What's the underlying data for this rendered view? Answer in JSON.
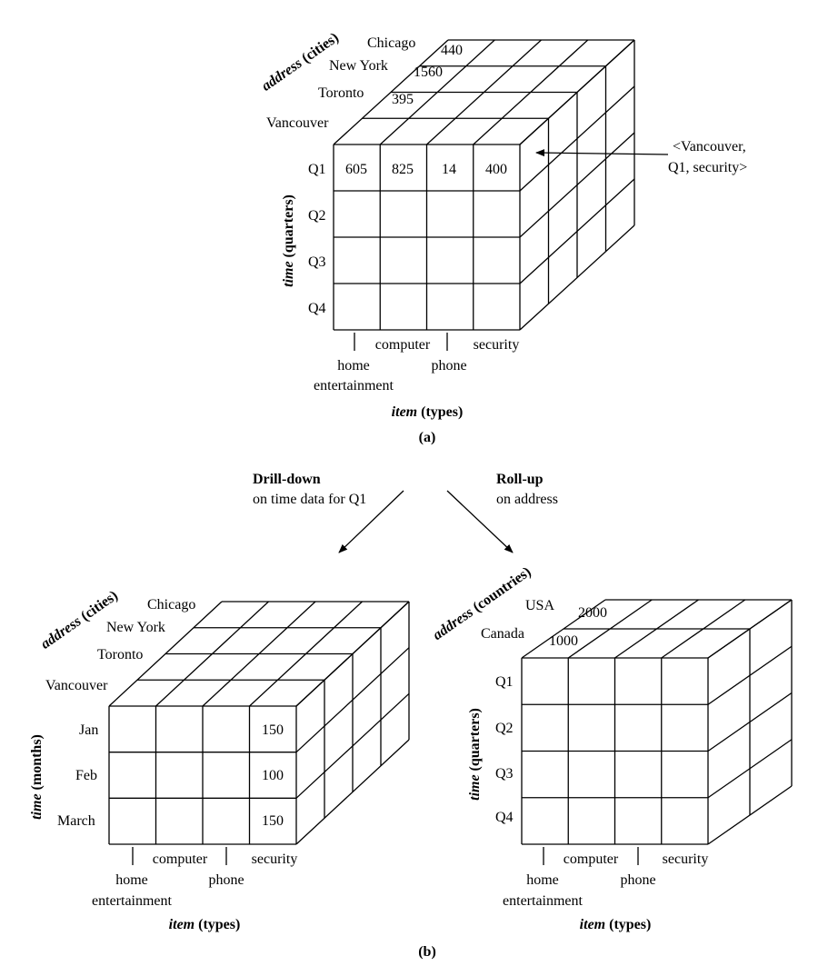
{
  "cube_a": {
    "cities": [
      "Chicago",
      "New York",
      "Toronto",
      "Vancouver"
    ],
    "quarters": [
      "Q1",
      "Q2",
      "Q3",
      "Q4"
    ],
    "items": [
      "home",
      "entertainment",
      "computer",
      "phone",
      "security"
    ],
    "front_values": [
      "605",
      "825",
      "14",
      "400"
    ],
    "depth_values": [
      "440",
      "1560",
      "395"
    ],
    "address_axis": "(cities)",
    "address_axis_italic": "address",
    "time_axis": "(quarters)",
    "time_axis_italic": "time",
    "item_axis_italic": "item",
    "item_axis": "(types)",
    "callout_line1": "<Vancouver,",
    "callout_line2": "Q1, security>",
    "caption": "(a)"
  },
  "ops": {
    "drill_title": "Drill-down",
    "drill_sub": "on time data for Q1",
    "roll_title": "Roll-up",
    "roll_sub": "on address"
  },
  "cube_drill": {
    "cities": [
      "Chicago",
      "New York",
      "Toronto",
      "Vancouver"
    ],
    "months": [
      "Jan",
      "Feb",
      "March"
    ],
    "security_values": [
      "150",
      "100",
      "150"
    ],
    "items": [
      "home",
      "entertainment",
      "computer",
      "phone",
      "security"
    ],
    "address_axis_italic": "address",
    "address_axis": "(cities)",
    "time_axis_italic": "time",
    "time_axis": "(months)",
    "item_axis_italic": "item",
    "item_axis": "(types)"
  },
  "cube_roll": {
    "countries": [
      "USA",
      "Canada"
    ],
    "country_values": [
      "2000",
      "1000"
    ],
    "quarters": [
      "Q1",
      "Q2",
      "Q3",
      "Q4"
    ],
    "items": [
      "home",
      "entertainment",
      "computer",
      "phone",
      "security"
    ],
    "address_axis_italic": "address",
    "address_axis": "(countries)",
    "time_axis_italic": "time",
    "time_axis": "(quarters)",
    "item_axis_italic": "item",
    "item_axis": "(types)"
  },
  "caption_b": "(b)"
}
